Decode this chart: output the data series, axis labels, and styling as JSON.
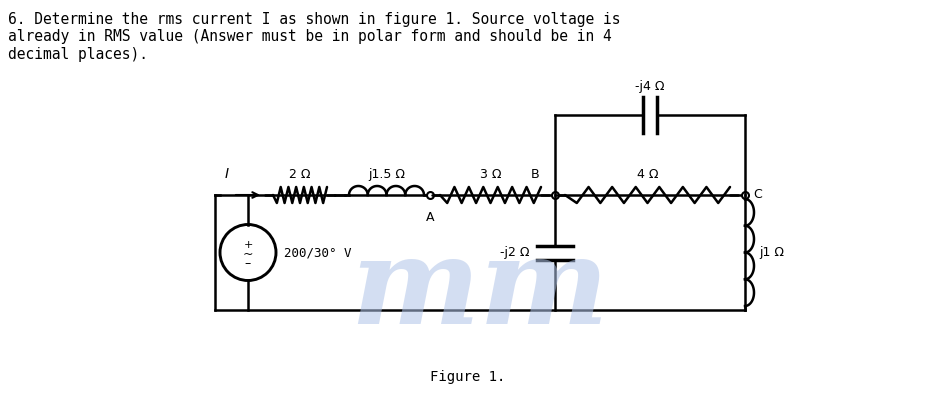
{
  "title_text": "6. Determine the rms current I as shown in figure 1. Source voltage is\nalready in RMS value (Answer must be in polar form and should be in 4\ndecimal places).",
  "figure_label": "Figure 1.",
  "background_color": "#ffffff",
  "text_color": "#000000",
  "circuit_color": "#000000",
  "watermark_color": "#b0c4e8",
  "source_voltage": "200/30° V",
  "resistors": [
    "2 Ω",
    "j1.5 Ω",
    "3 Ω",
    "4 Ω"
  ],
  "shunt_cap": "-j2 Ω",
  "shunt_ind": "j1 Ω",
  "series_cap": "-j4 Ω",
  "nodes": [
    "A",
    "B",
    "C"
  ],
  "current_label": "I"
}
